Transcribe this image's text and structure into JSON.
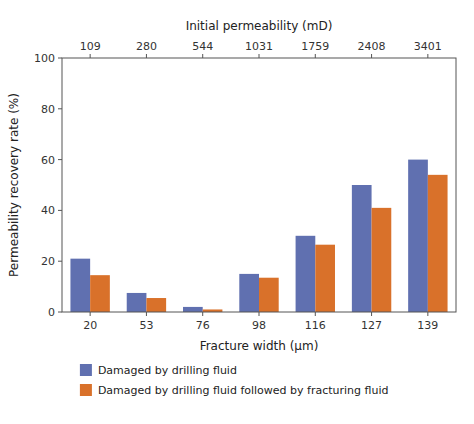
{
  "chart_data": {
    "type": "bar",
    "xlabel": "Fracture width (μm)",
    "ylabel": "Permeability recovery rate (%)",
    "x2label": "Initial permeability (mD)",
    "categories": [
      "20",
      "53",
      "76",
      "98",
      "116",
      "127",
      "139"
    ],
    "x2_categories": [
      "109",
      "280",
      "544",
      "1031",
      "1759",
      "2408",
      "3401"
    ],
    "series": [
      {
        "name": "Damaged by drilling fluid",
        "color": "#6070b0",
        "values": [
          21,
          7.5,
          2,
          15,
          30,
          50,
          60
        ]
      },
      {
        "name": "Damaged by drilling fluid followed by fracturing fluid",
        "color": "#d9712a",
        "values": [
          14.5,
          5.5,
          1,
          13.5,
          26.5,
          41,
          54
        ]
      }
    ],
    "ylim": [
      0,
      100
    ],
    "yticks": [
      0,
      20,
      40,
      60,
      80,
      100
    ],
    "grid": false,
    "legend": "bottom"
  }
}
